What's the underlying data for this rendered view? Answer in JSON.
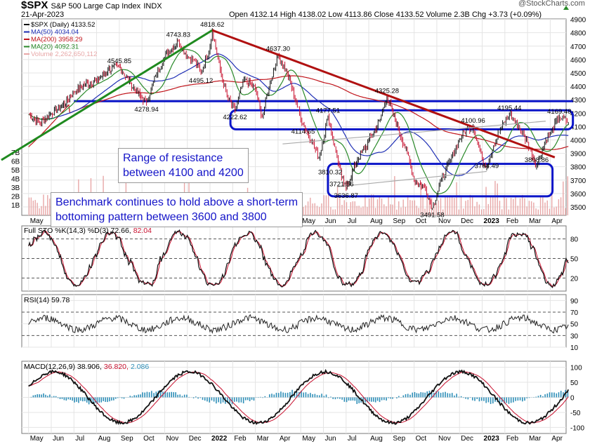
{
  "header": {
    "symbol": "$SPX",
    "name": "S&P 500 Large Cap Index",
    "exchange": "INDX",
    "date": "21-Apr-2023",
    "ohlc": "Open 4132.14  High 4138.02  Low 4113.86  Close 4133.52  Volume 2.3B  Chg +3.73 (+0.09%)",
    "watermark": "@StockCharts.com"
  },
  "colors": {
    "up": "#111111",
    "down": "#c8102e",
    "ma50": "#1f2fb5",
    "ma200": "#c0141b",
    "ma20": "#2a8a2a",
    "volume": "#e8a7a7",
    "trend_green": "#1f8a1f",
    "trend_red": "#b01010",
    "annotation_blue": "#0a14c8",
    "histogram": "#2f8fb8"
  },
  "annotations": {
    "resistance": "Range of resistance\nbetween 4100 and 4200",
    "support": "Benchmark continues to hold above a short-term\nbottoming pattern between 3600 and 3800"
  },
  "chart_data": [
    {
      "type": "line",
      "title": "$SPX (Daily) 4133.52",
      "ylim": [
        3400,
        4900
      ],
      "yticks": [
        3500,
        3600,
        3700,
        3800,
        3900,
        4000,
        4100,
        4200,
        4300,
        4400,
        4500,
        4600,
        4700,
        4800,
        4900
      ],
      "volume_ticks": [
        "7B",
        "6B",
        "5B",
        "4B",
        "3B",
        "2B",
        "1B"
      ],
      "x_labels": [
        "May",
        "Jun",
        "Jul",
        "Aug",
        "Sep",
        "Oct",
        "Nov",
        "Dec",
        "2022",
        "Feb",
        "Mar",
        "Apr",
        "May",
        "Jun",
        "Jul",
        "Aug",
        "Sep",
        "Oct",
        "Nov",
        "Dec",
        "2023",
        "Feb",
        "Mar",
        "Apr"
      ],
      "legend": [
        {
          "name": "$SPX (Daily) 4133.52",
          "color": "#111111"
        },
        {
          "name": "MA(50) 4034.04",
          "color": "#1f2fb5"
        },
        {
          "name": "MA(200) 3958.29",
          "color": "#c0141b"
        },
        {
          "name": "MA(20) 4092.31",
          "color": "#2a8a2a"
        },
        {
          "name": "Volume 2,262,650,112",
          "color": "#e8a7a7"
        }
      ],
      "price_anchors": [
        {
          "m": 0,
          "v": 4190
        },
        {
          "m": 0.5,
          "v": 4130
        },
        {
          "m": 1,
          "v": 4200
        },
        {
          "m": 1.5,
          "v": 4255
        },
        {
          "m": 2,
          "v": 4360
        },
        {
          "m": 2.5,
          "v": 4420
        },
        {
          "m": 3,
          "v": 4440
        },
        {
          "m": 3.5,
          "v": 4520
        },
        {
          "m": 4,
          "v": 4545.85
        },
        {
          "m": 4.5,
          "v": 4420
        },
        {
          "m": 5,
          "v": 4310
        },
        {
          "m": 5.2,
          "v": 4278.94
        },
        {
          "m": 5.6,
          "v": 4480
        },
        {
          "m": 6,
          "v": 4620
        },
        {
          "m": 6.6,
          "v": 4743.83
        },
        {
          "m": 7,
          "v": 4620
        },
        {
          "m": 7.3,
          "v": 4600
        },
        {
          "m": 7.6,
          "v": 4495.12
        },
        {
          "m": 8,
          "v": 4700
        },
        {
          "m": 8.1,
          "v": 4818.62
        },
        {
          "m": 8.5,
          "v": 4480
        },
        {
          "m": 8.8,
          "v": 4300
        },
        {
          "m": 9.1,
          "v": 4222.62
        },
        {
          "m": 9.5,
          "v": 4450
        },
        {
          "m": 10,
          "v": 4380
        },
        {
          "m": 10.3,
          "v": 4170
        },
        {
          "m": 10.6,
          "v": 4400
        },
        {
          "m": 11,
          "v": 4637.3
        },
        {
          "m": 11.4,
          "v": 4500
        },
        {
          "m": 11.8,
          "v": 4280
        },
        {
          "m": 12.1,
          "v": 4114.65
        },
        {
          "m": 12.5,
          "v": 3990
        },
        {
          "m": 12.8,
          "v": 3860
        },
        {
          "m": 13.2,
          "v": 4177.51
        },
        {
          "m": 13.5,
          "v": 3950
        },
        {
          "m": 13.8,
          "v": 3721.56
        },
        {
          "m": 14,
          "v": 3636.87
        },
        {
          "m": 14.5,
          "v": 3850
        },
        {
          "m": 15,
          "v": 3990
        },
        {
          "m": 15.5,
          "v": 4150
        },
        {
          "m": 15.8,
          "v": 4325.28
        },
        {
          "m": 16.3,
          "v": 4080
        },
        {
          "m": 16.7,
          "v": 3900
        },
        {
          "m": 17,
          "v": 3700
        },
        {
          "m": 17.5,
          "v": 3640
        },
        {
          "m": 17.8,
          "v": 3491.58
        },
        {
          "m": 18.2,
          "v": 3700
        },
        {
          "m": 18.6,
          "v": 3850
        },
        {
          "m": 19,
          "v": 4000
        },
        {
          "m": 19.3,
          "v": 4080
        },
        {
          "m": 19.6,
          "v": 4100.96
        },
        {
          "m": 20,
          "v": 3850
        },
        {
          "m": 20.2,
          "v": 3810
        },
        {
          "m": 20.5,
          "v": 3960
        },
        {
          "m": 20.8,
          "v": 4080
        },
        {
          "m": 21.2,
          "v": 4195.44
        },
        {
          "m": 21.6,
          "v": 4100
        },
        {
          "m": 22,
          "v": 3980
        },
        {
          "m": 22.4,
          "v": 3808.86
        },
        {
          "m": 22.8,
          "v": 4000
        },
        {
          "m": 23,
          "v": 4050
        },
        {
          "m": 23.4,
          "v": 4169.48
        },
        {
          "m": 23.8,
          "v": 4133.52
        }
      ],
      "price_labels": [
        {
          "m": 4,
          "v": 4545.85,
          "label": "4545.85",
          "pos": "above"
        },
        {
          "m": 5.2,
          "v": 4278.94,
          "label": "4278.94",
          "pos": "below"
        },
        {
          "m": 6.6,
          "v": 4743.83,
          "label": "4743.83",
          "pos": "above"
        },
        {
          "m": 7.6,
          "v": 4495.12,
          "label": "4495.12",
          "pos": "below"
        },
        {
          "m": 8.1,
          "v": 4818.62,
          "label": "4818.62",
          "pos": "above"
        },
        {
          "m": 9.1,
          "v": 4222.62,
          "label": "4222.62",
          "pos": "below"
        },
        {
          "m": 11,
          "v": 4637.3,
          "label": "4637.30",
          "pos": "above"
        },
        {
          "m": 12.1,
          "v": 4114.65,
          "label": "4114.65",
          "pos": "below"
        },
        {
          "m": 13.2,
          "v": 4177.51,
          "label": "4177.51",
          "pos": "above"
        },
        {
          "m": 13.3,
          "v": 3810.32,
          "label": "3810.32",
          "pos": "below"
        },
        {
          "m": 13.8,
          "v": 3721.56,
          "label": "3721.56",
          "pos": "below"
        },
        {
          "m": 14,
          "v": 3636.87,
          "label": "3636.87",
          "pos": "below"
        },
        {
          "m": 15.8,
          "v": 4325.28,
          "label": "4325.28",
          "pos": "above"
        },
        {
          "m": 17.8,
          "v": 3491.58,
          "label": "3491.58",
          "pos": "below"
        },
        {
          "m": 19.6,
          "v": 4100.96,
          "label": "4100.96",
          "pos": "above"
        },
        {
          "m": 21.2,
          "v": 4195.44,
          "label": "4195.44",
          "pos": "above"
        },
        {
          "m": 20.2,
          "v": 3764.49,
          "label": "3764.49",
          "pos": "above"
        },
        {
          "m": 22.4,
          "v": 3808.86,
          "label": "3808.86",
          "pos": "above"
        },
        {
          "m": 23.4,
          "v": 4169.48,
          "label": "4169.48",
          "pos": "above"
        }
      ],
      "trendlines": [
        {
          "name": "long-term uptrend",
          "color": "#1f8a1f",
          "from": {
            "m": -1.2,
            "v": 3850
          },
          "to": {
            "m": 8.1,
            "v": 4818.62
          }
        },
        {
          "name": "downtrend",
          "color": "#b01010",
          "from": {
            "m": 8.1,
            "v": 4818.62
          },
          "to": {
            "m": 23.2,
            "v": 3870
          }
        },
        {
          "name": "rising wedge top",
          "color": "#aaaaaa",
          "from": {
            "m": 11.2,
            "v": 3970
          },
          "to": {
            "m": 22.8,
            "v": 4140
          }
        },
        {
          "name": "rising wedge bottom",
          "color": "#aaaaaa",
          "from": {
            "m": 13.6,
            "v": 3650
          },
          "to": {
            "m": 20.2,
            "v": 3764.49
          }
        }
      ],
      "zones": [
        {
          "name": "resistance",
          "from_m": 8.9,
          "to_m": 24,
          "low": 4100,
          "high": 4200
        },
        {
          "name": "support",
          "from_m": 13.2,
          "to_m": 23.1,
          "low": 3600,
          "high": 3800
        }
      ],
      "horizontal_line": {
        "v": 4278.94,
        "from_m": 2,
        "to_m": 24
      }
    },
    {
      "type": "line",
      "title": "Full STO %K(14,3) %D(3) 72.66, 82.04",
      "label_k": "Full STO %K(14,3) %D(3) 72.66,",
      "label_d": "82.04",
      "ylim": [
        0,
        100
      ],
      "yticks": [
        20,
        50,
        80
      ],
      "series_names": [
        "%K",
        "%D"
      ]
    },
    {
      "type": "line",
      "title": "RSI(14) 59.78",
      "ylim": [
        10,
        100
      ],
      "yticks": [
        10,
        30,
        50,
        70,
        90
      ]
    },
    {
      "type": "line",
      "title": "MACD(12,26,9) 38.906, 36.820, 2.086",
      "label_macd": "MACD(12,26,9) 38.906,",
      "label_signal": "36.820,",
      "label_hist": "2.086",
      "ylim": [
        -120,
        120
      ],
      "yticks": [
        -100,
        -50,
        0,
        50,
        100
      ]
    }
  ]
}
